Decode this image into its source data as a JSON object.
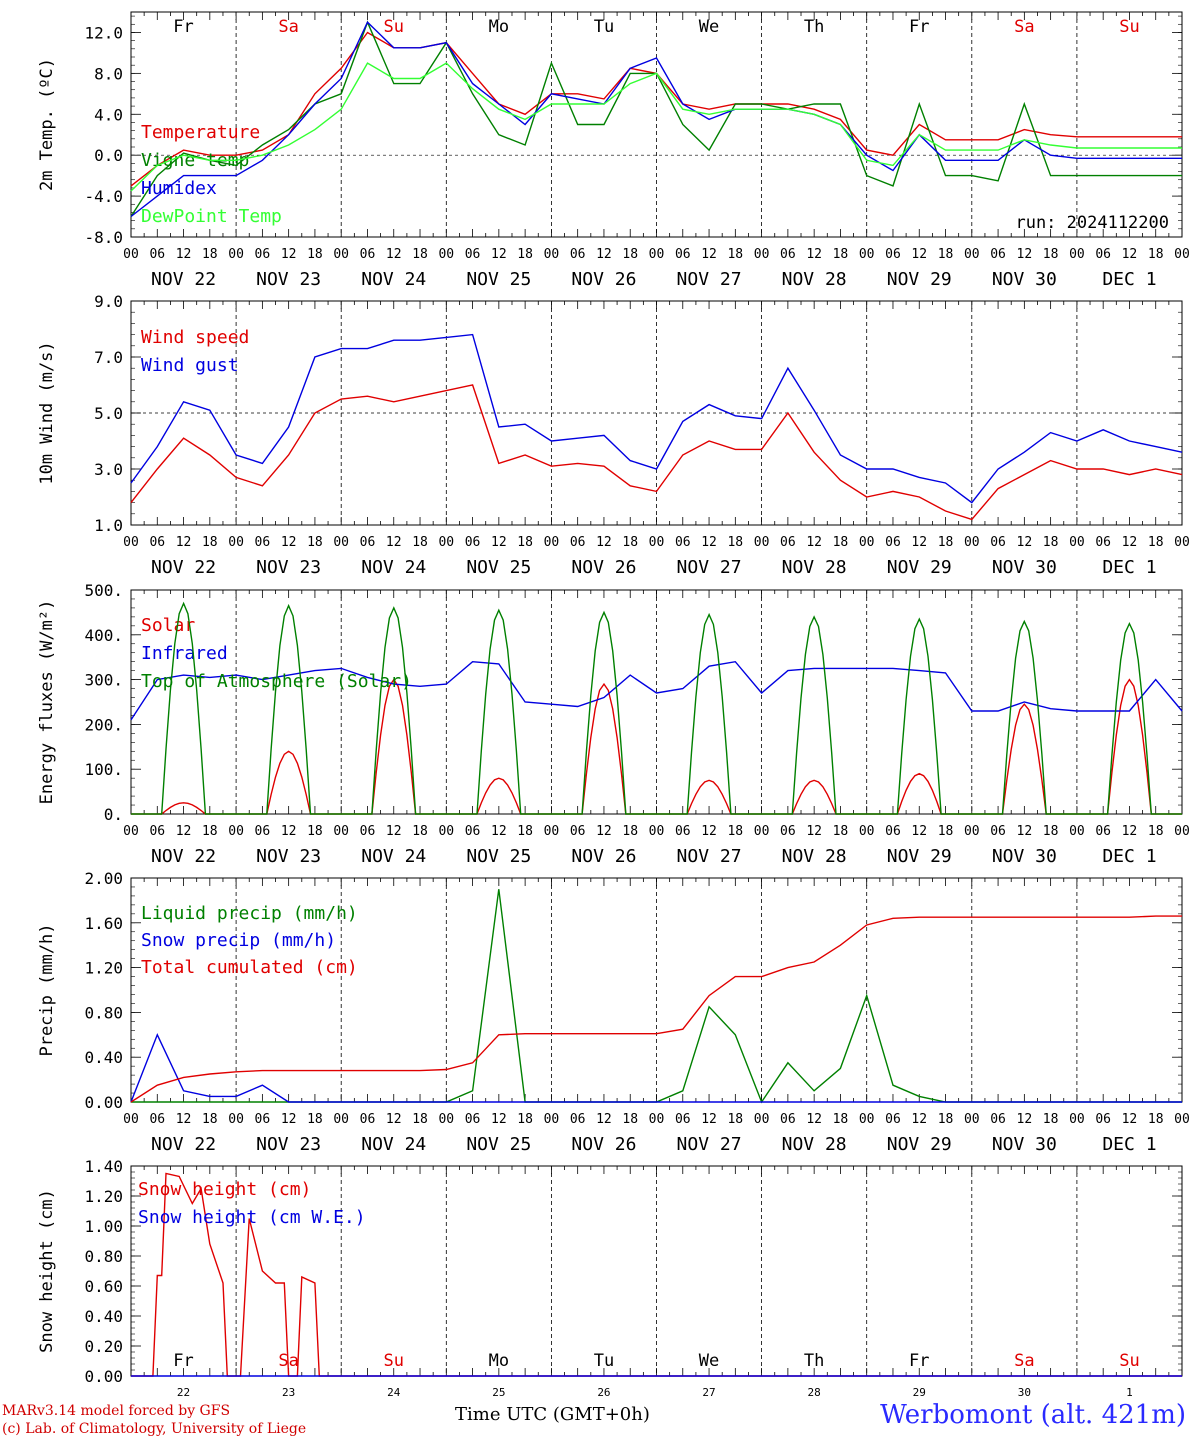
{
  "footer": {
    "credit_line1": "MARv3.14 model forced by GFS",
    "credit_line2": "(c) Lab. of Climatology, University of Liege",
    "station": "Werbomont (alt. 421m)",
    "x_axis_title": "Time UTC (GMT+0h)"
  },
  "colors": {
    "red": "#e00000",
    "darkgreen": "#008000",
    "blue": "#0000e0",
    "lightgreen": "#33ff33"
  },
  "chart_data": [
    {
      "type": "line",
      "ylabel": "2m Temp. (ºC)",
      "ylim": [
        -8,
        14
      ],
      "yticks": [
        "12.0",
        "8.0",
        "4.0",
        "0.0",
        "-4.0",
        "-8.0"
      ],
      "ytick_values": [
        12,
        8,
        4,
        0,
        -4,
        -8
      ],
      "day_letters": [
        "Fr",
        "Sa",
        "Su",
        "Mo",
        "Tu",
        "We",
        "Th",
        "Fr",
        "Sa",
        "Su"
      ],
      "weekend_days": [
        1,
        2,
        8,
        9
      ],
      "hour_labels": [
        "00",
        "06",
        "12",
        "18"
      ],
      "date_labels": [
        "NOV 22",
        "NOV 23",
        "NOV 24",
        "NOV 25",
        "NOV 26",
        "NOV 27",
        "NOV 28",
        "NOV 29",
        "NOV 30",
        "DEC  1"
      ],
      "annotation": "run: 2024112200",
      "x_hours": [
        0,
        6,
        12,
        18,
        24,
        30,
        36,
        42,
        48,
        54,
        60,
        66,
        72,
        78,
        84,
        90,
        96,
        102,
        108,
        114,
        120,
        126,
        132,
        138,
        144,
        150,
        156,
        162,
        168,
        174,
        180,
        186,
        192,
        198,
        204,
        210,
        216,
        222,
        228,
        234,
        240
      ],
      "series": [
        {
          "name": "Temperature",
          "color": "red",
          "values": [
            -3,
            -1,
            0.5,
            0,
            0,
            0.5,
            2,
            6,
            8.5,
            12,
            10.5,
            10.5,
            11,
            8,
            5,
            4,
            6,
            6,
            5.5,
            8.5,
            8,
            5,
            4.5,
            5,
            5,
            5,
            4.5,
            3.5,
            0.5,
            0,
            3,
            1.5,
            1.5,
            1.5,
            2.5,
            2,
            1.8,
            1.8,
            1.8,
            1.8,
            1.8
          ]
        },
        {
          "name": "Vigne temp",
          "color": "darkgreen",
          "values": [
            -6,
            -2,
            0.2,
            -0.5,
            -1,
            1,
            2.5,
            5,
            6,
            13,
            7,
            7,
            11,
            6,
            2,
            1,
            9,
            3,
            3,
            8,
            8,
            3,
            0.5,
            5,
            5,
            4.5,
            5,
            5,
            -2,
            -3,
            5,
            -2,
            -2,
            -2.5,
            5,
            -2,
            -2,
            -2,
            -2,
            -2,
            -2
          ]
        },
        {
          "name": "Humidex",
          "color": "blue",
          "values": [
            -6,
            -4,
            -2,
            -2,
            -2,
            -0.5,
            2,
            5,
            7.5,
            13,
            10.5,
            10.5,
            11,
            7,
            5,
            3,
            6,
            5.5,
            5,
            8.5,
            9.5,
            5,
            3.5,
            4.5,
            4.5,
            4.5,
            4,
            3,
            0,
            -1.5,
            2,
            -0.5,
            -0.5,
            -0.5,
            1.5,
            0,
            -0.3,
            -0.3,
            -0.3,
            -0.3,
            -0.3
          ]
        },
        {
          "name": "DewPoint Temp",
          "color": "lightgreen",
          "values": [
            -3.5,
            -1,
            0,
            -0.5,
            -0.5,
            0,
            1,
            2.5,
            4.5,
            9,
            7.5,
            7.5,
            9,
            6.5,
            4.5,
            3.5,
            5,
            5,
            5,
            7,
            8,
            4.5,
            4,
            4.5,
            4.5,
            4.5,
            4,
            3,
            -0.5,
            -1,
            2,
            0.5,
            0.5,
            0.5,
            1.5,
            1,
            0.7,
            0.7,
            0.7,
            0.7,
            0.7
          ]
        }
      ]
    },
    {
      "type": "line",
      "ylabel": "10m Wind (m/s)",
      "ylim": [
        1,
        9
      ],
      "yticks": [
        "9.0",
        "7.0",
        "5.0",
        "3.0",
        "1.0"
      ],
      "ytick_values": [
        9,
        7,
        5,
        3,
        1
      ],
      "dashed_y": 5,
      "hour_labels": [
        "00",
        "06",
        "12",
        "18"
      ],
      "date_labels": [
        "NOV 22",
        "NOV 23",
        "NOV 24",
        "NOV 25",
        "NOV 26",
        "NOV 27",
        "NOV 28",
        "NOV 29",
        "NOV 30",
        "DEC  1"
      ],
      "x_hours": [
        0,
        6,
        12,
        18,
        24,
        30,
        36,
        42,
        48,
        54,
        60,
        66,
        72,
        78,
        84,
        90,
        96,
        102,
        108,
        114,
        120,
        126,
        132,
        138,
        144,
        150,
        156,
        162,
        168,
        174,
        180,
        186,
        192,
        198,
        204,
        210,
        216,
        222,
        228,
        234,
        240
      ],
      "series": [
        {
          "name": "Wind speed",
          "color": "red",
          "values": [
            1.8,
            3,
            4.1,
            3.5,
            2.7,
            2.4,
            3.5,
            5,
            5.5,
            5.6,
            5.4,
            5.6,
            5.8,
            6,
            3.2,
            3.5,
            3.1,
            3.2,
            3.1,
            2.4,
            2.2,
            3.5,
            4,
            3.7,
            3.7,
            5,
            3.6,
            2.6,
            2,
            2.2,
            2,
            1.5,
            1.2,
            2.3,
            2.8,
            3.3,
            3,
            3,
            2.8,
            3,
            2.8
          ]
        },
        {
          "name": "Wind gust",
          "color": "blue",
          "values": [
            2.5,
            3.8,
            5.4,
            5.1,
            3.5,
            3.2,
            4.5,
            7,
            7.3,
            7.3,
            7.6,
            7.6,
            7.7,
            7.8,
            4.5,
            4.6,
            4,
            4.1,
            4.2,
            3.3,
            3,
            4.7,
            5.3,
            4.9,
            4.8,
            6.6,
            5.1,
            3.5,
            3,
            3,
            2.7,
            2.5,
            1.8,
            3,
            3.6,
            4.3,
            4,
            4.4,
            4,
            3.8,
            3.6
          ]
        }
      ]
    },
    {
      "type": "line",
      "ylabel": "Energy fluxes (W/m²)",
      "ylim": [
        0,
        500
      ],
      "yticks": [
        "500.",
        "400.",
        "300.",
        "200.",
        "100.",
        "0."
      ],
      "ytick_values": [
        500,
        400,
        300,
        200,
        100,
        0
      ],
      "hour_labels": [
        "00",
        "06",
        "12",
        "18"
      ],
      "date_labels": [
        "NOV 22",
        "NOV 23",
        "NOV 24",
        "NOV 25",
        "NOV 26",
        "NOV 27",
        "NOV 28",
        "NOV 29",
        "NOV 30",
        "DEC  1"
      ],
      "peak_hours": [
        12,
        36,
        60,
        84,
        108,
        132,
        156,
        180,
        204,
        228
      ],
      "series": [
        {
          "name": "Solar",
          "color": "red",
          "peaks": [
            25,
            140,
            300,
            80,
            290,
            75,
            75,
            90,
            245,
            300
          ]
        },
        {
          "name": "Infrared",
          "color": "blue",
          "x_hours": [
            0,
            6,
            12,
            18,
            24,
            30,
            36,
            42,
            48,
            54,
            60,
            66,
            72,
            78,
            84,
            90,
            96,
            102,
            108,
            114,
            120,
            126,
            132,
            138,
            144,
            150,
            156,
            162,
            168,
            174,
            180,
            186,
            192,
            198,
            204,
            210,
            216,
            222,
            228,
            234,
            240
          ],
          "values": [
            210,
            300,
            310,
            305,
            310,
            300,
            310,
            320,
            325,
            305,
            290,
            285,
            290,
            340,
            335,
            250,
            245,
            240,
            260,
            310,
            270,
            280,
            330,
            340,
            270,
            320,
            325,
            325,
            325,
            325,
            320,
            315,
            230,
            230,
            250,
            235,
            230,
            230,
            230,
            300,
            230
          ]
        },
        {
          "name": "Top of Atmosphere (Solar)",
          "color": "darkgreen",
          "peaks": [
            470,
            465,
            460,
            455,
            450,
            445,
            440,
            435,
            430,
            425
          ]
        }
      ]
    },
    {
      "type": "line",
      "ylabel": "Precip (mm/h)",
      "ylim": [
        0,
        2
      ],
      "yticks": [
        "2.00",
        "1.60",
        "1.20",
        "0.80",
        "0.40",
        "0.00"
      ],
      "ytick_values": [
        2,
        1.6,
        1.2,
        0.8,
        0.4,
        0
      ],
      "hour_labels": [
        "00",
        "06",
        "12",
        "18"
      ],
      "date_labels": [
        "NOV 22",
        "NOV 23",
        "NOV 24",
        "NOV 25",
        "NOV 26",
        "NOV 27",
        "NOV 28",
        "NOV 29",
        "NOV 30",
        "DEC  1"
      ],
      "x_hours": [
        0,
        6,
        12,
        18,
        24,
        30,
        36,
        42,
        48,
        54,
        60,
        66,
        72,
        78,
        84,
        90,
        96,
        102,
        108,
        114,
        120,
        126,
        132,
        138,
        144,
        150,
        156,
        162,
        168,
        174,
        180,
        186,
        192,
        198,
        204,
        210,
        216,
        222,
        228,
        234,
        240
      ],
      "series": [
        {
          "name": "Liquid precip (mm/h)",
          "color": "darkgreen",
          "values": [
            0,
            0,
            0,
            0,
            0,
            0,
            0,
            0,
            0,
            0,
            0,
            0,
            0,
            0.1,
            1.9,
            0,
            0,
            0,
            0,
            0,
            0,
            0.1,
            0.85,
            0.6,
            0,
            0.35,
            0.1,
            0.3,
            0.95,
            0.15,
            0.05,
            0,
            0,
            0,
            0,
            0,
            0,
            0,
            0,
            0,
            0
          ]
        },
        {
          "name": "Snow precip (mm/h)",
          "color": "blue",
          "values": [
            0,
            0.6,
            0.1,
            0.05,
            0.05,
            0.15,
            0,
            0,
            0,
            0,
            0,
            0,
            0,
            0,
            0,
            0,
            0,
            0,
            0,
            0,
            0,
            0,
            0,
            0,
            0,
            0,
            0,
            0,
            0,
            0,
            0,
            0,
            0,
            0,
            0,
            0,
            0,
            0,
            0,
            0,
            0
          ]
        },
        {
          "name": "Total cumulated (cm)",
          "color": "red",
          "values": [
            0,
            0.15,
            0.22,
            0.25,
            0.27,
            0.28,
            0.28,
            0.28,
            0.28,
            0.28,
            0.28,
            0.28,
            0.29,
            0.35,
            0.6,
            0.61,
            0.61,
            0.61,
            0.61,
            0.61,
            0.61,
            0.65,
            0.95,
            1.12,
            1.12,
            1.2,
            1.25,
            1.4,
            1.58,
            1.64,
            1.65,
            1.65,
            1.65,
            1.65,
            1.65,
            1.65,
            1.65,
            1.65,
            1.65,
            1.66,
            1.66
          ]
        }
      ]
    },
    {
      "type": "line",
      "ylabel": "Snow height (cm)",
      "ylim": [
        0,
        1.4
      ],
      "yticks": [
        "1.40",
        "1.20",
        "1.00",
        "0.80",
        "0.60",
        "0.40",
        "0.20",
        "0.00"
      ],
      "ytick_values": [
        1.4,
        1.2,
        1,
        0.8,
        0.6,
        0.4,
        0.2,
        0
      ],
      "day_letters": [
        "Fr",
        "Sa",
        "Su",
        "Mo",
        "Tu",
        "We",
        "Th",
        "Fr",
        "Sa",
        "Su"
      ],
      "weekend_days": [
        1,
        2,
        8,
        9
      ],
      "day_numbers": [
        "22",
        "23",
        "24",
        "25",
        "26",
        "27",
        "28",
        "29",
        "30",
        "1"
      ],
      "series": [
        {
          "name": "Snow height (cm)",
          "color": "red",
          "points": [
            [
              0,
              0
            ],
            [
              5,
              0
            ],
            [
              6,
              0.67
            ],
            [
              7,
              0.67
            ],
            [
              8,
              1.35
            ],
            [
              11,
              1.33
            ],
            [
              14,
              1.15
            ],
            [
              16,
              1.25
            ],
            [
              18,
              0.88
            ],
            [
              21,
              0.62
            ],
            [
              22,
              0
            ],
            [
              24,
              0
            ],
            [
              25,
              0
            ],
            [
              27,
              1.05
            ],
            [
              30,
              0.7
            ],
            [
              33,
              0.62
            ],
            [
              35,
              0.62
            ],
            [
              36,
              0
            ],
            [
              38,
              0
            ],
            [
              39,
              0.66
            ],
            [
              42,
              0.62
            ],
            [
              43,
              0
            ],
            [
              240,
              0
            ]
          ]
        },
        {
          "name": "Snow height (cm W.E.)",
          "color": "blue",
          "points": [
            [
              0,
              0
            ],
            [
              240,
              0
            ]
          ]
        }
      ]
    }
  ]
}
